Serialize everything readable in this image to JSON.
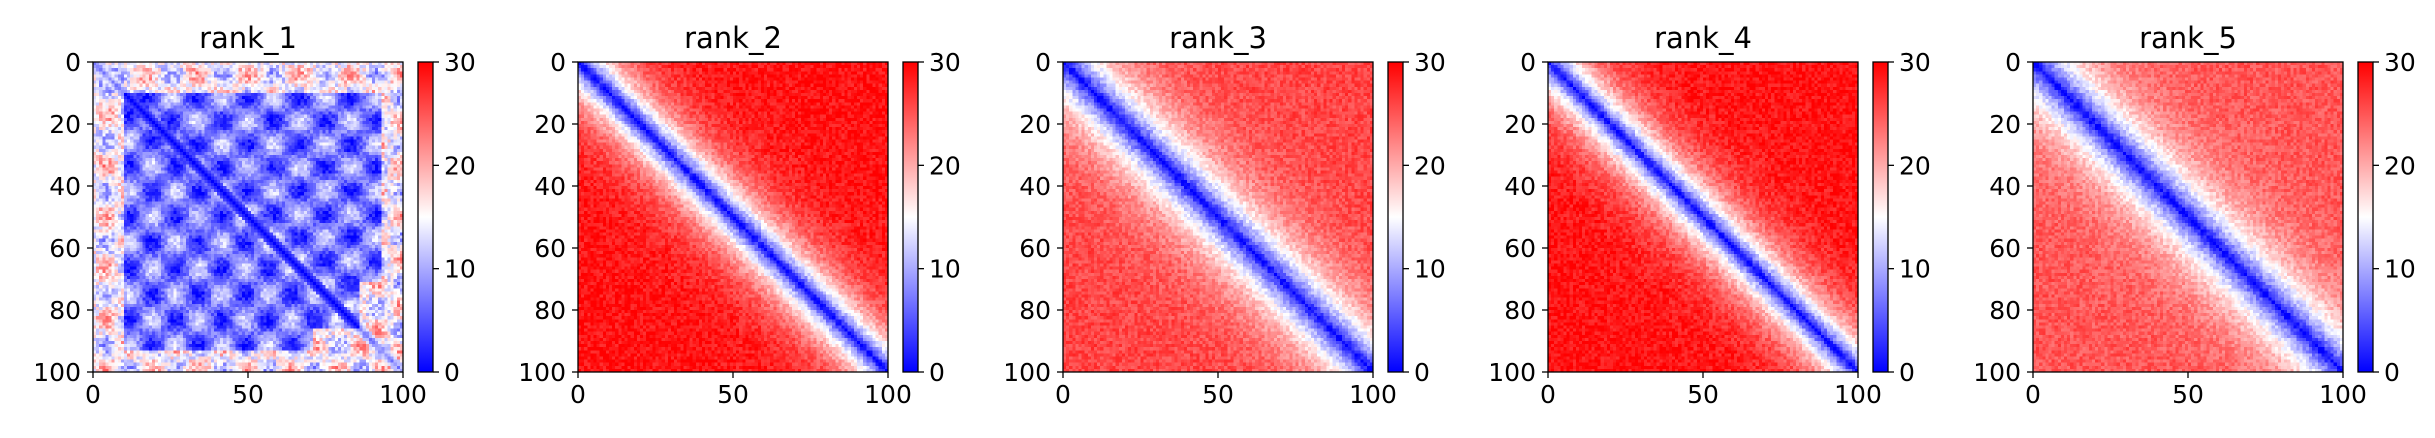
{
  "figure": {
    "colormap": {
      "name": "bwr",
      "low": "#0000ff",
      "mid": "#ffffff",
      "high": "#ff0000"
    }
  },
  "chart_data": [
    {
      "type": "heatmap",
      "title": "rank_1",
      "xlim": [
        0,
        100
      ],
      "ylim": [
        100,
        0
      ],
      "xticks": [
        0,
        50,
        100
      ],
      "yticks": [
        0,
        20,
        40,
        60,
        80,
        100
      ],
      "colorbar": {
        "vmin": 0,
        "vmax": 30,
        "ticks": [
          0,
          10,
          20,
          30
        ]
      },
      "size": 100,
      "diagonal_value": 0,
      "far_value": 20,
      "band_width": 6,
      "blocky": true,
      "seed": 11
    },
    {
      "type": "heatmap",
      "title": "rank_2",
      "xlim": [
        0,
        100
      ],
      "ylim": [
        100,
        0
      ],
      "xticks": [
        0,
        50,
        100
      ],
      "yticks": [
        0,
        20,
        40,
        60,
        80,
        100
      ],
      "colorbar": {
        "vmin": 0,
        "vmax": 30,
        "ticks": [
          0,
          10,
          20,
          30
        ]
      },
      "size": 100,
      "diagonal_value": 0,
      "far_value": 29,
      "band_width": 10,
      "blocky": false,
      "seed": 23
    },
    {
      "type": "heatmap",
      "title": "rank_3",
      "xlim": [
        0,
        100
      ],
      "ylim": [
        100,
        0
      ],
      "xticks": [
        0,
        50,
        100
      ],
      "yticks": [
        0,
        20,
        40,
        60,
        80,
        100
      ],
      "colorbar": {
        "vmin": 0,
        "vmax": 30,
        "ticks": [
          0,
          10,
          20,
          30
        ]
      },
      "size": 100,
      "diagonal_value": 0,
      "far_value": 26,
      "band_width": 12,
      "blocky": false,
      "seed": 37
    },
    {
      "type": "heatmap",
      "title": "rank_4",
      "xlim": [
        0,
        100
      ],
      "ylim": [
        100,
        0
      ],
      "xticks": [
        0,
        50,
        100
      ],
      "yticks": [
        0,
        20,
        40,
        60,
        80,
        100
      ],
      "colorbar": {
        "vmin": 0,
        "vmax": 30,
        "ticks": [
          0,
          10,
          20,
          30
        ]
      },
      "size": 100,
      "diagonal_value": 0,
      "far_value": 29,
      "band_width": 10,
      "blocky": false,
      "seed": 41
    },
    {
      "type": "heatmap",
      "title": "rank_5",
      "xlim": [
        0,
        100
      ],
      "ylim": [
        100,
        0
      ],
      "xticks": [
        0,
        50,
        100
      ],
      "yticks": [
        0,
        20,
        40,
        60,
        80,
        100
      ],
      "colorbar": {
        "vmin": 0,
        "vmax": 30,
        "ticks": [
          0,
          10,
          20,
          30
        ]
      },
      "size": 100,
      "diagonal_value": 0,
      "far_value": 25,
      "band_width": 12,
      "blocky": false,
      "seed": 53
    }
  ]
}
